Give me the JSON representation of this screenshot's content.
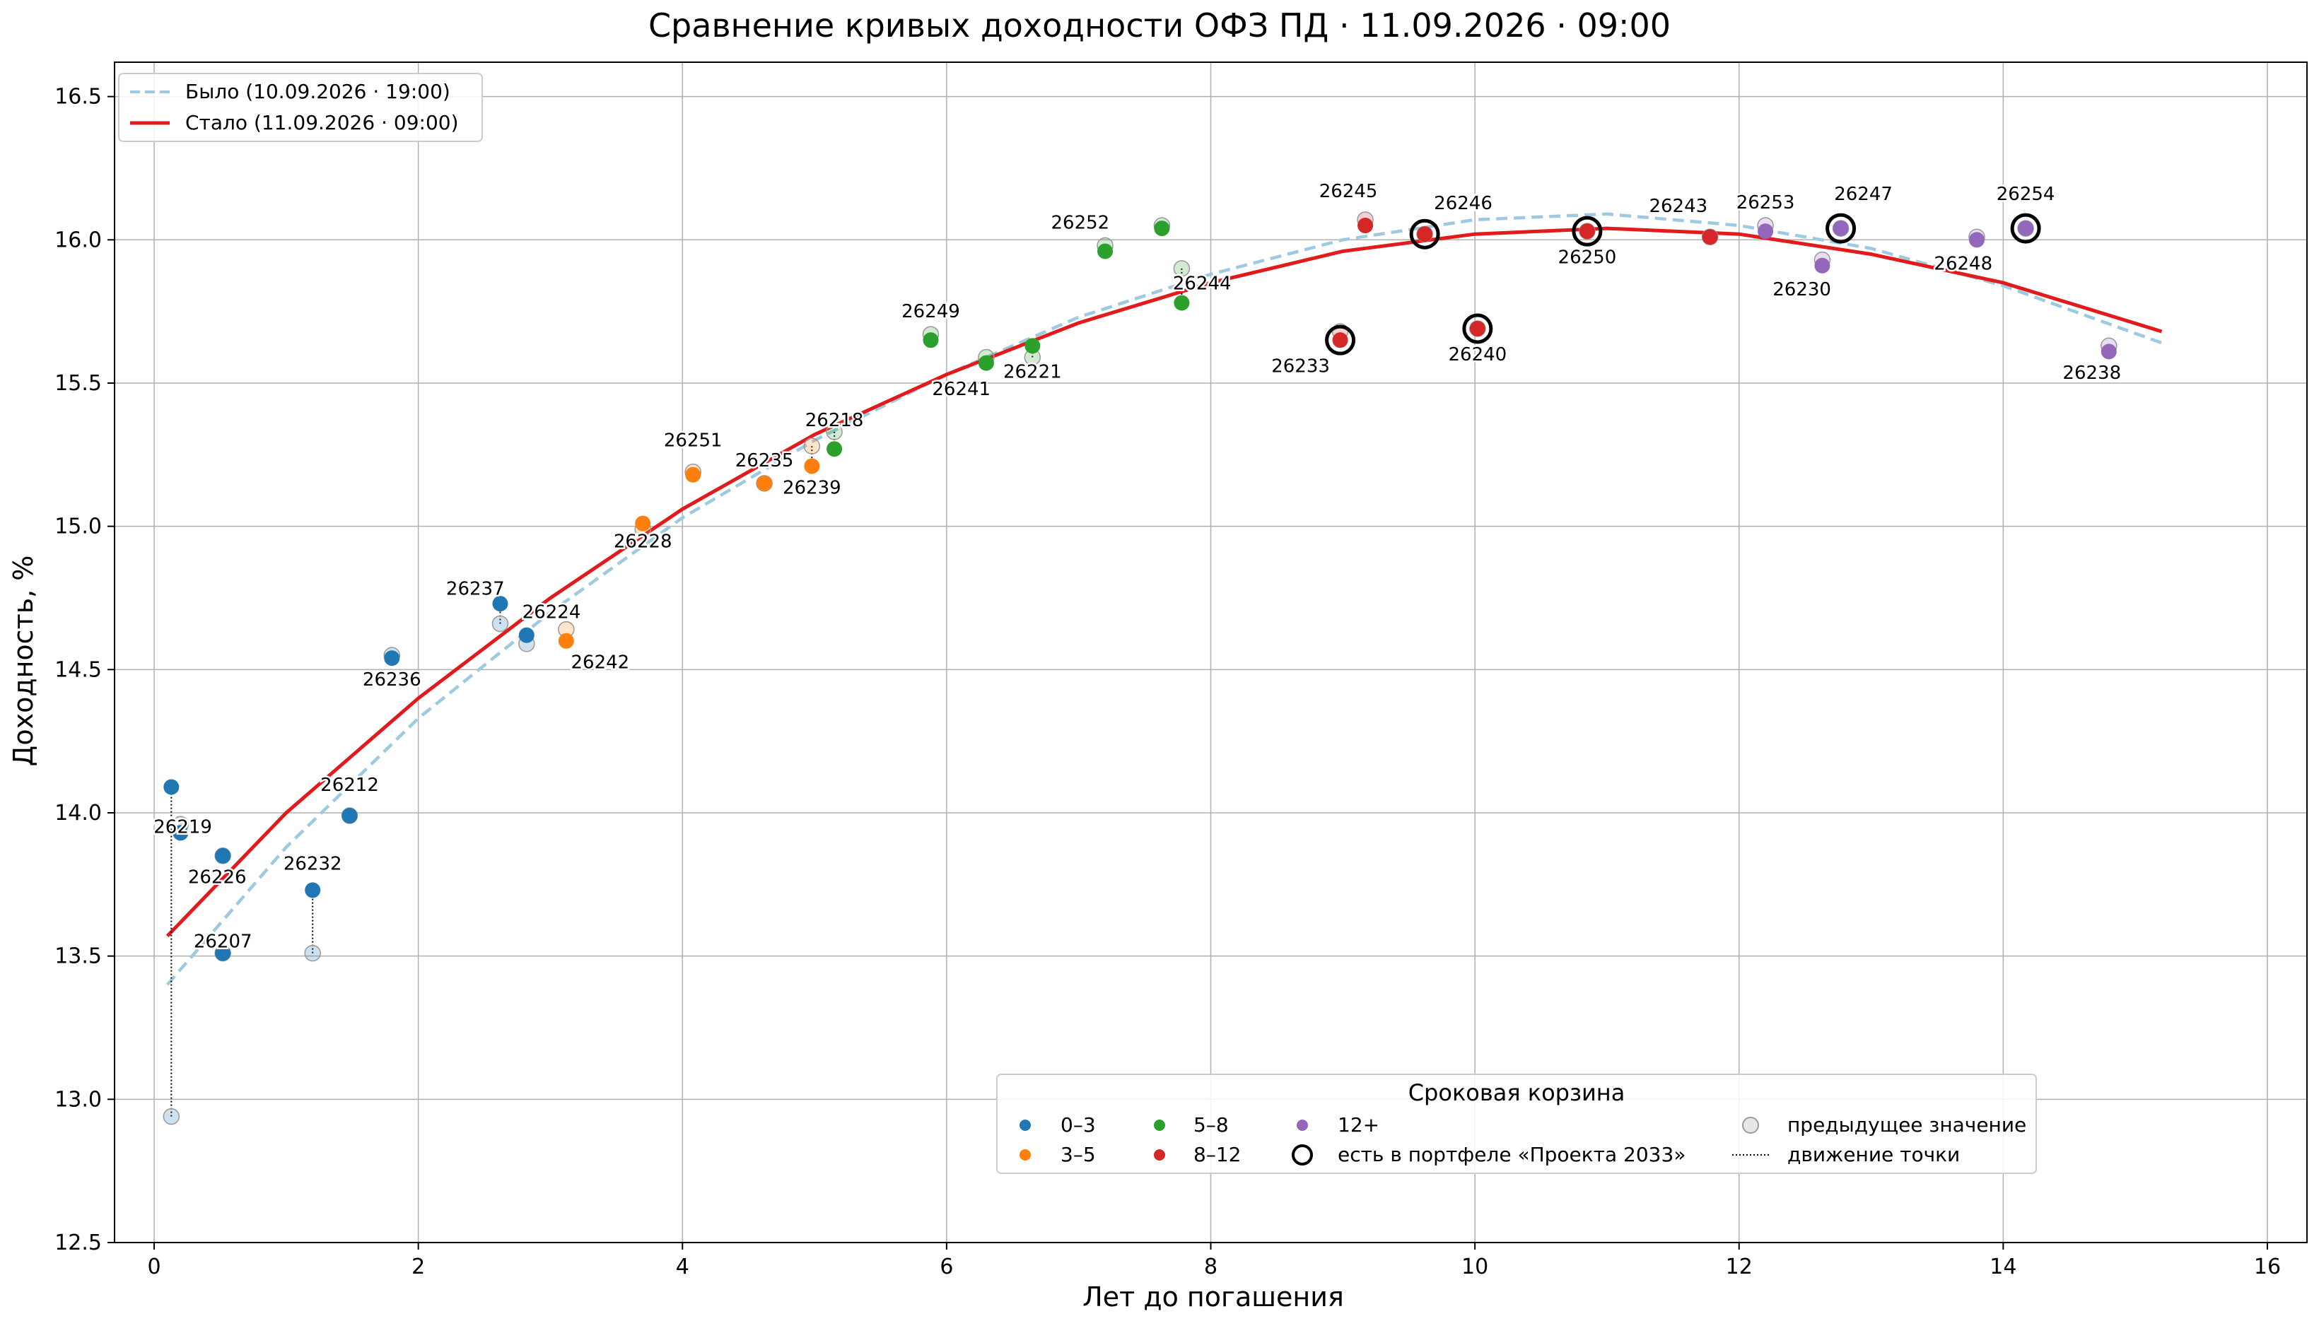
{
  "chart_data": {
    "type": "scatter",
    "title": "Сравнение кривых доходности ОФЗ ПД · 11.09.2026 · 09:00",
    "xlabel": "Лет до погашения",
    "ylabel": "Доходность, %",
    "xlim": [
      -0.3,
      16.3
    ],
    "ylim": [
      12.5,
      16.62
    ],
    "xticks": [
      "0",
      "2",
      "4",
      "6",
      "8",
      "10",
      "12",
      "14",
      "16"
    ],
    "xtick_values": [
      0,
      2,
      4,
      6,
      8,
      10,
      12,
      14,
      16
    ],
    "yticks": [
      "12.5",
      "13.0",
      "13.5",
      "14.0",
      "14.5",
      "15.0",
      "15.5",
      "16.0",
      "16.5"
    ],
    "ytick_values": [
      12.5,
      13.0,
      13.5,
      14.0,
      14.5,
      15.0,
      15.5,
      16.0,
      16.5
    ],
    "grid": true,
    "legend_curves": {
      "placement": "top-left",
      "items": [
        {
          "label": "Было (10.09.2026 · 19:00)",
          "color": "#9ecae1",
          "style": "dashed"
        },
        {
          "label": "Стало (11.09.2026 · 09:00)",
          "color": "#e31a1c",
          "style": "solid"
        }
      ]
    },
    "legend_buckets": {
      "title": "Сроковая корзина",
      "placement": "lower-center",
      "items": [
        {
          "label": "0–3",
          "color": "#1f77b4",
          "kind": "dot"
        },
        {
          "label": "3–5",
          "color": "#ff7f0e",
          "kind": "dot"
        },
        {
          "label": "5–8",
          "color": "#2ca02c",
          "kind": "dot"
        },
        {
          "label": "8–12",
          "color": "#d62728",
          "kind": "dot"
        },
        {
          "label": "12+",
          "color": "#9467bd",
          "kind": "dot"
        },
        {
          "label": "есть в портфеле «Проекта 2033»",
          "color": "#000000",
          "kind": "ring"
        },
        {
          "label": "предыдущее значение",
          "color": "#bbbbbb",
          "kind": "prev"
        },
        {
          "label": "движение точки",
          "color": "#000000",
          "kind": "dotted"
        }
      ]
    },
    "bucket_colors": {
      "0-3": "#1f77b4",
      "3-5": "#ff7f0e",
      "5-8": "#2ca02c",
      "8-12": "#d62728",
      "12+": "#9467bd"
    },
    "curves": [
      {
        "name": "Было (10.09.2026 · 19:00)",
        "x": [
          0.1,
          1,
          2,
          3,
          4,
          5,
          6,
          7,
          8,
          9,
          10,
          11,
          12,
          13,
          14,
          15.2
        ],
        "y": [
          13.4,
          13.88,
          14.33,
          14.7,
          15.03,
          15.3,
          15.53,
          15.73,
          15.88,
          16.0,
          16.07,
          16.09,
          16.05,
          15.97,
          15.84,
          15.64
        ]
      },
      {
        "name": "Стало (11.09.2026 · 09:00)",
        "x": [
          0.1,
          1,
          2,
          3,
          4,
          5,
          6,
          7,
          8,
          9,
          10,
          11,
          12,
          13,
          14,
          15.2
        ],
        "y": [
          13.57,
          14.0,
          14.4,
          14.75,
          15.06,
          15.32,
          15.53,
          15.71,
          15.85,
          15.96,
          16.02,
          16.04,
          16.02,
          15.95,
          15.85,
          15.68
        ]
      }
    ],
    "bonds": [
      {
        "id": "",
        "bucket": "0-3",
        "x": 0.13,
        "y": 14.09,
        "prev_y": 12.94,
        "move": true,
        "portfolio": false
      },
      {
        "id": "26219",
        "bucket": "0-3",
        "x": 0.2,
        "y": 13.93,
        "prev_y": 13.96,
        "move": false,
        "portfolio": false
      },
      {
        "id": "26226",
        "bucket": "0-3",
        "x": 0.52,
        "y": 13.85,
        "prev_y": 13.85,
        "move": false,
        "portfolio": false
      },
      {
        "id": "26207",
        "bucket": "0-3",
        "x": 0.52,
        "y": 13.51,
        "prev_y": 13.51,
        "move": false,
        "portfolio": false
      },
      {
        "id": "26232",
        "bucket": "0-3",
        "x": 1.2,
        "y": 13.73,
        "prev_y": 13.51,
        "move": true,
        "portfolio": false
      },
      {
        "id": "26212",
        "bucket": "0-3",
        "x": 1.48,
        "y": 13.99,
        "prev_y": 13.99,
        "move": false,
        "portfolio": false
      },
      {
        "id": "26236",
        "bucket": "0-3",
        "x": 1.8,
        "y": 14.54,
        "prev_y": 14.55,
        "move": false,
        "portfolio": false
      },
      {
        "id": "26237",
        "bucket": "0-3",
        "x": 2.62,
        "y": 14.73,
        "prev_y": 14.66,
        "move": true,
        "portfolio": false
      },
      {
        "id": "26224",
        "bucket": "0-3",
        "x": 2.82,
        "y": 14.62,
        "prev_y": 14.59,
        "move": false,
        "portfolio": false
      },
      {
        "id": "26242",
        "bucket": "3-5",
        "x": 3.12,
        "y": 14.6,
        "prev_y": 14.64,
        "move": false,
        "portfolio": false
      },
      {
        "id": "26228",
        "bucket": "3-5",
        "x": 3.7,
        "y": 15.01,
        "prev_y": 14.99,
        "move": false,
        "portfolio": false
      },
      {
        "id": "26251",
        "bucket": "3-5",
        "x": 4.08,
        "y": 15.18,
        "prev_y": 15.19,
        "move": false,
        "portfolio": false
      },
      {
        "id": "26235",
        "bucket": "3-5",
        "x": 4.62,
        "y": 15.15,
        "prev_y": 15.15,
        "move": false,
        "portfolio": false
      },
      {
        "id": "26239",
        "bucket": "3-5",
        "x": 4.98,
        "y": 15.21,
        "prev_y": 15.28,
        "move": true,
        "portfolio": false
      },
      {
        "id": "26218",
        "bucket": "5-8",
        "x": 5.15,
        "y": 15.27,
        "prev_y": 15.33,
        "move": true,
        "portfolio": false
      },
      {
        "id": "26249",
        "bucket": "5-8",
        "x": 5.88,
        "y": 15.65,
        "prev_y": 15.67,
        "move": false,
        "portfolio": false
      },
      {
        "id": "26241",
        "bucket": "5-8",
        "x": 6.3,
        "y": 15.57,
        "prev_y": 15.59,
        "move": false,
        "portfolio": false
      },
      {
        "id": "26221",
        "bucket": "5-8",
        "x": 6.65,
        "y": 15.63,
        "prev_y": 15.59,
        "move": true,
        "portfolio": false
      },
      {
        "id": "26252",
        "bucket": "5-8",
        "x": 7.2,
        "y": 15.96,
        "prev_y": 15.98,
        "move": false,
        "portfolio": false
      },
      {
        "id": "",
        "bucket": "5-8",
        "x": 7.63,
        "y": 16.04,
        "prev_y": 16.05,
        "move": false,
        "portfolio": false
      },
      {
        "id": "26244",
        "bucket": "5-8",
        "x": 7.78,
        "y": 15.78,
        "prev_y": 15.9,
        "move": true,
        "portfolio": false
      },
      {
        "id": "26233",
        "bucket": "8-12",
        "x": 8.98,
        "y": 15.65,
        "prev_y": 15.68,
        "move": false,
        "portfolio": true
      },
      {
        "id": "26245",
        "bucket": "8-12",
        "x": 9.17,
        "y": 16.05,
        "prev_y": 16.07,
        "move": false,
        "portfolio": false
      },
      {
        "id": "26246",
        "bucket": "8-12",
        "x": 9.62,
        "y": 16.02,
        "prev_y": 16.02,
        "move": false,
        "portfolio": true
      },
      {
        "id": "26240",
        "bucket": "8-12",
        "x": 10.02,
        "y": 15.69,
        "prev_y": 15.69,
        "move": false,
        "portfolio": true
      },
      {
        "id": "26250",
        "bucket": "8-12",
        "x": 10.85,
        "y": 16.03,
        "prev_y": 16.03,
        "move": false,
        "portfolio": true
      },
      {
        "id": "26243",
        "bucket": "8-12",
        "x": 11.78,
        "y": 16.01,
        "prev_y": 16.01,
        "move": false,
        "portfolio": false
      },
      {
        "id": "26253",
        "bucket": "12+",
        "x": 12.2,
        "y": 16.03,
        "prev_y": 16.05,
        "move": false,
        "portfolio": false
      },
      {
        "id": "26230",
        "bucket": "12+",
        "x": 12.63,
        "y": 15.91,
        "prev_y": 15.93,
        "move": false,
        "portfolio": false
      },
      {
        "id": "26247",
        "bucket": "12+",
        "x": 12.77,
        "y": 16.04,
        "prev_y": 16.04,
        "move": false,
        "portfolio": true
      },
      {
        "id": "26248",
        "bucket": "12+",
        "x": 13.8,
        "y": 16.0,
        "prev_y": 16.01,
        "move": false,
        "portfolio": false
      },
      {
        "id": "26254",
        "bucket": "12+",
        "x": 14.17,
        "y": 16.04,
        "prev_y": 16.04,
        "move": false,
        "portfolio": true
      },
      {
        "id": "26238",
        "bucket": "12+",
        "x": 14.8,
        "y": 15.61,
        "prev_y": 15.63,
        "move": false,
        "portfolio": false
      }
    ],
    "label_offsets": {
      "26219": [
        2,
        0
      ],
      "26226": [
        -5,
        18
      ],
      "26207": [
        0,
        -5
      ],
      "26232": [
        0,
        -18
      ],
      "26212": [
        0,
        -22
      ],
      "26236": [
        0,
        18
      ],
      "26237": [
        -22,
        -8
      ],
      "26224": [
        22,
        -15
      ],
      "26242": [
        30,
        18
      ],
      "26228": [
        0,
        15
      ],
      "26251": [
        0,
        -25
      ],
      "26235": [
        0,
        -15
      ],
      "26239": [
        0,
        18
      ],
      "26218": [
        0,
        -20
      ],
      "26249": [
        0,
        -20
      ],
      "26241": [
        -22,
        22
      ],
      "26221": [
        0,
        22
      ],
      "26252": [
        -22,
        -20
      ],
      "26244": [
        18,
        -12
      ],
      "26233": [
        -35,
        22
      ],
      "26245": [
        -15,
        -25
      ],
      "26246": [
        34,
        -22
      ],
      "26240": [
        0,
        22
      ],
      "26250": [
        0,
        22
      ],
      "26243": [
        -28,
        -22
      ],
      "26253": [
        0,
        -20
      ],
      "26230": [
        -18,
        20
      ],
      "26247": [
        20,
        -25
      ],
      "26248": [
        -12,
        20
      ],
      "26254": [
        0,
        -25
      ],
      "26238": [
        -15,
        18
      ]
    }
  }
}
